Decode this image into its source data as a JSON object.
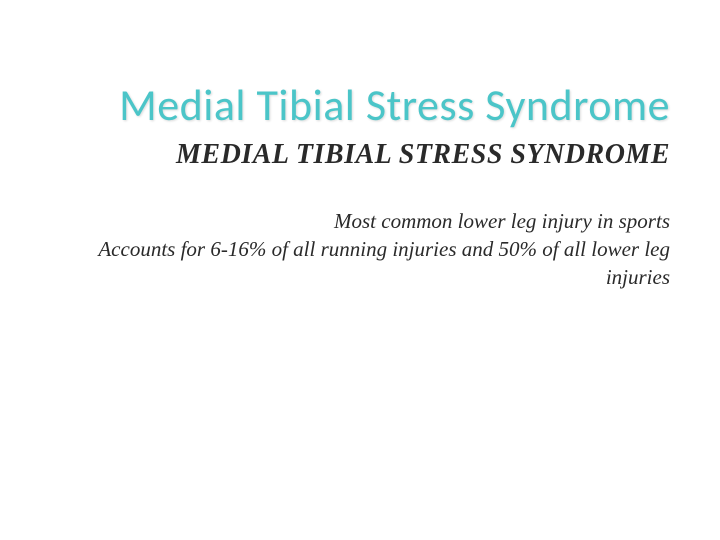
{
  "slide": {
    "title": "Medial Tibial Stress Syndrome",
    "title_color": "#4bc5c8",
    "title_fontsize": 44,
    "subtitle": "MEDIAL TIBIAL STRESS SYNDROME",
    "subtitle_color": "#2a2a2a",
    "subtitle_fontsize": 28,
    "body1": "Most common lower leg injury in sports",
    "body2": "Accounts for 6-16% of all running injuries and 50% of all lower leg injuries",
    "body_color": "#2a2a2a",
    "body_fontsize": 21,
    "background_color": "#ffffff"
  }
}
